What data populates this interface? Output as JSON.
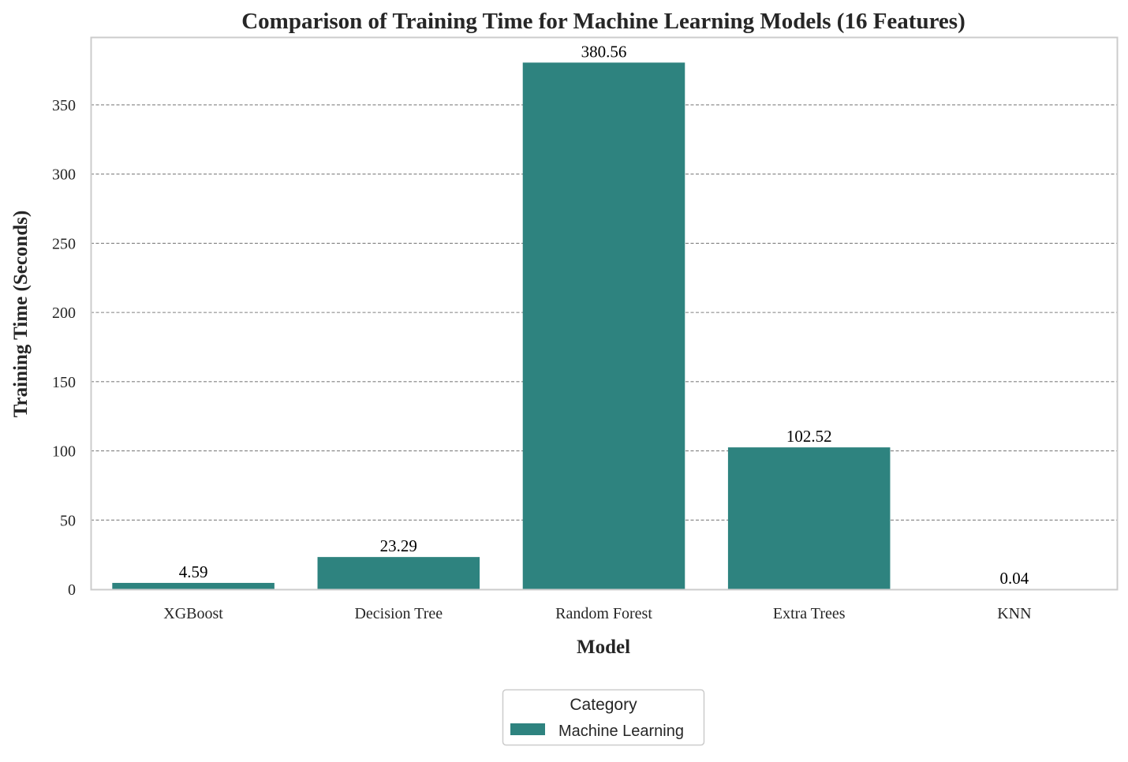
{
  "chart_data": {
    "type": "bar",
    "title": "Comparison of Training Time for Machine Learning Models (16 Features)",
    "xlabel": "Model",
    "ylabel": "Training Time (Seconds)",
    "categories": [
      "XGBoost",
      "Decision Tree",
      "Random Forest",
      "Extra Trees",
      "KNN"
    ],
    "series": [
      {
        "name": "Machine Learning",
        "values": [
          4.59,
          23.29,
          380.56,
          102.52,
          0.04
        ],
        "color": "#2e837f"
      }
    ],
    "data_labels": [
      "4.59",
      "23.29",
      "380.56",
      "102.52",
      "0.04"
    ],
    "ylim": [
      0,
      399
    ],
    "yticks": [
      0,
      50,
      100,
      150,
      200,
      250,
      300,
      350
    ],
    "grid": "y-dashed",
    "legend": {
      "title": "Category",
      "placement": "bottom-center",
      "entries": [
        "Machine Learning"
      ]
    }
  }
}
